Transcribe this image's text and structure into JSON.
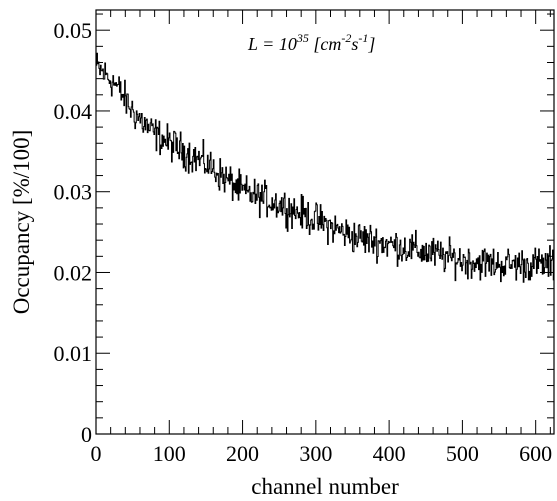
{
  "chart_data": {
    "type": "line",
    "title": "",
    "annotation": {
      "prefix": "L = 10",
      "exponent": "35",
      "unit_open": " [cm",
      "unit_exp1": "-2",
      "unit_mid": "s",
      "unit_exp2": "-1",
      "unit_close": "]"
    },
    "xlabel": "channel number",
    "ylabel": "Occupancy [%/100]",
    "xlim": [
      0,
      625
    ],
    "ylim": [
      0,
      0.0525
    ],
    "x_major_ticks": [
      0,
      100,
      200,
      300,
      400,
      500,
      600
    ],
    "x_tick_labels": [
      "0",
      "100",
      "200",
      "300",
      "400",
      "500",
      "600"
    ],
    "y_major_ticks": [
      0,
      0.01,
      0.02,
      0.03,
      0.04,
      0.05
    ],
    "y_tick_labels": [
      "0",
      "0.01",
      "0.02",
      "0.03",
      "0.04",
      "0.05"
    ],
    "x_minor_step": 20,
    "y_minor_step": 0.002,
    "grid": false,
    "series": [
      {
        "style": "histogram-step",
        "color": "#000000",
        "trend": {
          "x": [
            0,
            25,
            50,
            75,
            100,
            150,
            200,
            250,
            300,
            350,
            400,
            450,
            500,
            550,
            600,
            625
          ],
          "y": [
            0.0455,
            0.0435,
            0.04,
            0.0375,
            0.036,
            0.0335,
            0.03,
            0.0285,
            0.0265,
            0.0245,
            0.0235,
            0.0225,
            0.0215,
            0.021,
            0.021,
            0.021
          ]
        },
        "noise_amplitude": 0.0016,
        "bin_count": 625
      }
    ]
  }
}
